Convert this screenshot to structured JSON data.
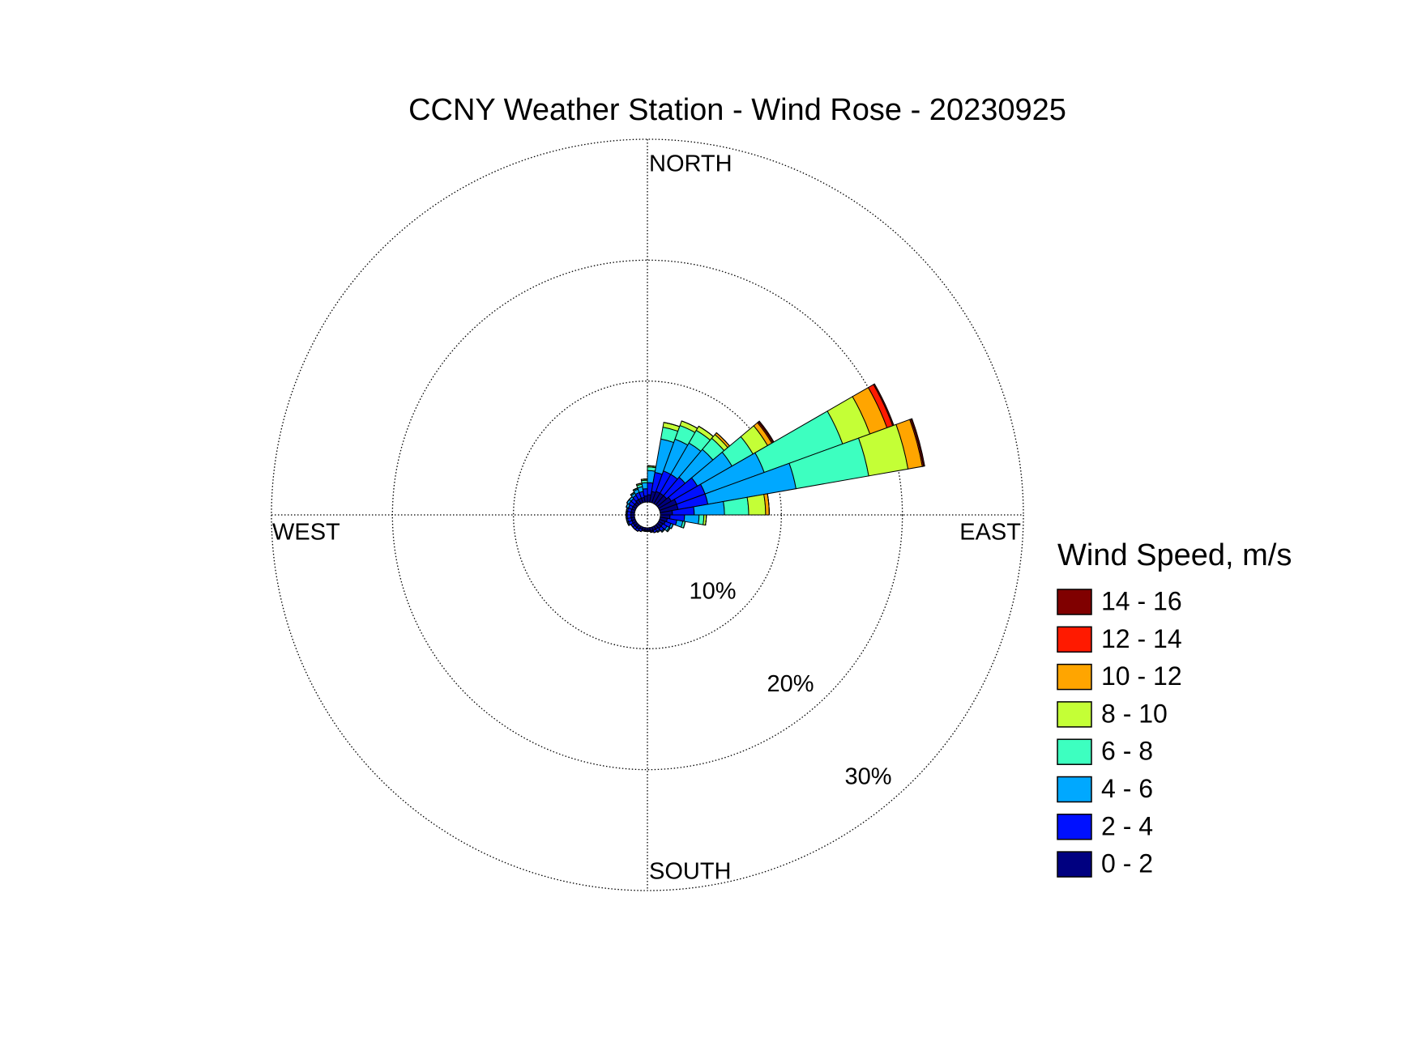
{
  "chart_data": {
    "type": "windrose",
    "title": "CCNY Weather Station - Wind Rose - 20230925",
    "direction_labels": [
      "NORTH",
      "EAST",
      "SOUTH",
      "WEST"
    ],
    "x": [
      5,
      15,
      25,
      35,
      45,
      55,
      65,
      75,
      85,
      95,
      105,
      115,
      125,
      135,
      145,
      155,
      165,
      175,
      185,
      195,
      205,
      215,
      225,
      235,
      245,
      255,
      265,
      275,
      285,
      295,
      305,
      315,
      325,
      335,
      345,
      355
    ],
    "rlim": [
      0,
      30
    ],
    "rticks": [
      {
        "value": 10,
        "label": "10%"
      },
      {
        "value": 20,
        "label": "20%"
      },
      {
        "value": 30,
        "label": "30%"
      }
    ],
    "grid": true,
    "legend_title": "Wind Speed, m/s",
    "series": [
      {
        "name": "0 - 2",
        "color": "#000080",
        "values": [
          0.6,
          0.9,
          1.0,
          1.0,
          1.0,
          1.2,
          1.5,
          1.5,
          1.0,
          0.8,
          0.6,
          0.5,
          0.4,
          0.4,
          0.3,
          0.3,
          0.3,
          0.2,
          0.2,
          0.2,
          0.2,
          0.3,
          0.3,
          0.3,
          0.3,
          0.3,
          0.3,
          0.3,
          0.3,
          0.3,
          0.3,
          0.3,
          0.4,
          0.4,
          0.4,
          0.5
        ]
      },
      {
        "name": "2 - 4",
        "color": "#0010ff",
        "values": [
          1.0,
          1.6,
          1.8,
          1.8,
          2.0,
          2.5,
          2.5,
          2.5,
          1.8,
          1.2,
          0.8,
          0.5,
          0.4,
          0.3,
          0.2,
          0.2,
          0.1,
          0.1,
          0.1,
          0.1,
          0.2,
          0.2,
          0.2,
          0.2,
          0.3,
          0.3,
          0.3,
          0.3,
          0.3,
          0.3,
          0.4,
          0.4,
          0.4,
          0.5,
          0.5,
          0.6
        ]
      },
      {
        "name": "4 - 6",
        "color": "#00a8ff",
        "values": [
          1.0,
          2.8,
          2.8,
          3.0,
          3.0,
          3.3,
          5.2,
          7.4,
          2.5,
          1.2,
          0.5,
          0.2,
          0.2,
          0.1,
          0.1,
          0,
          0,
          0,
          0,
          0,
          0,
          0,
          0,
          0,
          0.1,
          0.1,
          0.1,
          0.1,
          0.1,
          0.2,
          0.2,
          0.2,
          0.2,
          0.3,
          0.4,
          0.5
        ]
      },
      {
        "name": "6 - 8",
        "color": "#3dffc0",
        "values": [
          0.3,
          1.0,
          1.2,
          1.2,
          1.2,
          2.0,
          6.9,
          6.1,
          2.0,
          0.4,
          0.2,
          0,
          0.1,
          0,
          0,
          0,
          0,
          0,
          0,
          0,
          0,
          0,
          0,
          0,
          0,
          0,
          0,
          0,
          0,
          0,
          0,
          0,
          0.1,
          0.1,
          0.2,
          0.2
        ]
      },
      {
        "name": "8 - 10",
        "color": "#c4ff36",
        "values": [
          0.1,
          0.4,
          0.4,
          0.4,
          0.4,
          1.4,
          2.4,
          3.3,
          1.4,
          0.2,
          0,
          0,
          0,
          0,
          0,
          0,
          0,
          0,
          0,
          0,
          0,
          0,
          0,
          0,
          0,
          0,
          0,
          0,
          0,
          0,
          0,
          0,
          0,
          0,
          0.1,
          0.1
        ]
      },
      {
        "name": "10 - 12",
        "color": "#ffa500",
        "values": [
          0,
          0,
          0,
          0,
          0.2,
          0.4,
          1.5,
          1.2,
          0.3,
          0,
          0,
          0,
          0,
          0,
          0,
          0,
          0,
          0,
          0,
          0,
          0,
          0,
          0,
          0,
          0,
          0,
          0,
          0,
          0,
          0,
          0,
          0,
          0,
          0,
          0,
          0
        ]
      },
      {
        "name": "12 - 14",
        "color": "#ff1a00",
        "values": [
          0,
          0,
          0,
          0,
          0,
          0.1,
          0.5,
          0.1,
          0,
          0,
          0,
          0,
          0,
          0,
          0,
          0,
          0,
          0,
          0,
          0,
          0,
          0,
          0,
          0,
          0,
          0,
          0,
          0,
          0,
          0,
          0,
          0,
          0,
          0,
          0,
          0
        ]
      },
      {
        "name": "14 - 16",
        "color": "#800000",
        "values": [
          0,
          0,
          0,
          0,
          0,
          0.1,
          0.1,
          0.1,
          0,
          0,
          0,
          0,
          0,
          0,
          0,
          0,
          0,
          0,
          0,
          0,
          0,
          0,
          0,
          0,
          0,
          0,
          0,
          0,
          0,
          0,
          0,
          0,
          0,
          0,
          0,
          0
        ]
      }
    ]
  }
}
